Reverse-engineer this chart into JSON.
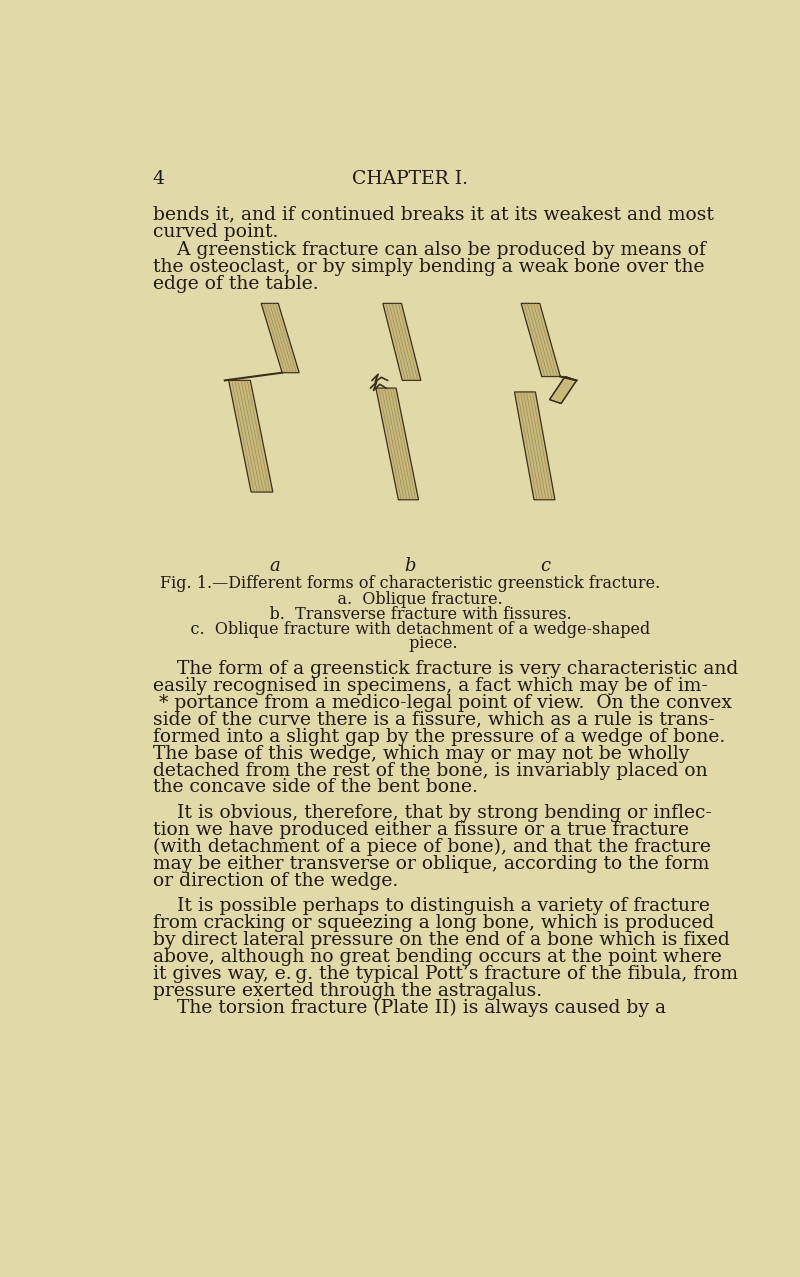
{
  "bg_color": "#e2d9a8",
  "text_color": "#1e1a14",
  "page_number": "4",
  "chapter_heading": "CHAPTER I.",
  "figsize": [
    8.0,
    12.77
  ],
  "dpi": 100,
  "line01": "bends it, and if continued breaks it at its weakest and most",
  "line02": "curved point.",
  "line03": "    A greenstick fracture can also be produced by means of",
  "line04": "the osteoclast, or by simply bending a weak bone over the",
  "line05": "edge of the table.",
  "fig_label_a": "a",
  "fig_label_b": "b",
  "fig_label_c": "c",
  "fig_caption_main": "Fig. 1.—Different forms of characteristic greenstick fracture.",
  "fig_caption_a": "a.  Oblique fracture.",
  "fig_caption_b": "b.  Transverse fracture with fissures.",
  "fig_caption_c1": "c.  Oblique fracture with detachment of a wedge-shaped",
  "fig_caption_c2": "         piece.",
  "body_lines": [
    "    The form of a greenstick fracture is very characteristic and",
    "easily recognised in specimens, a fact which may be of im-",
    " * portance from a medico-legal point of view.  On the convex",
    "side of the curve there is a fissure, which as a rule is trans-",
    "formed into a slight gap by the pressure of a wedge of bone.",
    "The base of this wedge, which may or may not be wholly",
    "detached from the rest of the bone, is invariably placed on",
    "the concave side of the bent bone.",
    "",
    "    It is obvious, therefore, that by strong bending or inflec-",
    "tion we have produced either a fissure or a true fracture",
    "(with detachment of a piece of bone), and that the fracture",
    "may be either transverse or oblique, according to the form",
    "or direction of the wedge.",
    "",
    "    It is possible perhaps to distinguish a variety of fracture",
    "from cracking or squeezing a long bone, which is produced",
    "by direct lateral pressure on the end of a bone which is fixed",
    "above, although no great bending occurs at the point where",
    "it gives way, e. g. the typical Pott’s fracture of the fibula, from",
    "pressure exerted through the astragalus.",
    "    The torsion fracture (Plate II) is always caused by a"
  ],
  "bone_color": "#c8b87a",
  "bone_line_color": "#3a2e1a",
  "bone_hatch_color": "#8a7850"
}
